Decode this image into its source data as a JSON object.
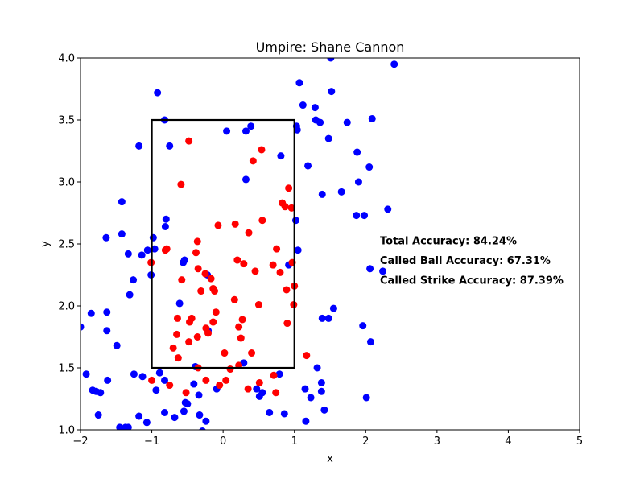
{
  "chart_data": {
    "type": "scatter",
    "title": "Umpire: Shane Cannon",
    "xlabel": "x",
    "ylabel": "y",
    "xlim": [
      -2,
      5
    ],
    "ylim": [
      1.0,
      4.0
    ],
    "xticks": [
      "−2",
      "−1",
      "0",
      "1",
      "2",
      "3",
      "4",
      "5"
    ],
    "yticks": [
      "1.0",
      "1.5",
      "2.0",
      "2.5",
      "3.0",
      "3.5",
      "4.0"
    ],
    "grid": false,
    "strike_zone": {
      "x": [
        -1,
        1
      ],
      "y": [
        1.5,
        3.5
      ],
      "color": "#000000"
    },
    "annotations": [
      {
        "text": "Total Accuracy: 84.24%",
        "x": 2.2,
        "y": 2.53
      },
      {
        "text": "Called Ball Accuracy: 67.31%",
        "x": 2.2,
        "y": 2.37
      },
      {
        "text": "Called Strike Accuracy: 87.39%",
        "x": 2.2,
        "y": 2.21
      }
    ],
    "series": [
      {
        "color": "#0000ff",
        "points": [
          [
            -2.0,
            1.83
          ],
          [
            -1.92,
            1.45
          ],
          [
            -1.85,
            1.94
          ],
          [
            -1.83,
            1.32
          ],
          [
            -1.78,
            1.31
          ],
          [
            -1.75,
            1.12
          ],
          [
            -1.72,
            1.3
          ],
          [
            -1.64,
            2.55
          ],
          [
            -1.63,
            1.95
          ],
          [
            -1.63,
            1.8
          ],
          [
            -1.62,
            1.4
          ],
          [
            -1.49,
            1.68
          ],
          [
            -1.45,
            1.02
          ],
          [
            -1.42,
            2.84
          ],
          [
            -1.42,
            2.58
          ],
          [
            -1.37,
            1.02
          ],
          [
            -1.33,
            1.02
          ],
          [
            -1.33,
            2.42
          ],
          [
            -1.31,
            2.09
          ],
          [
            -1.26,
            2.21
          ],
          [
            -1.25,
            1.45
          ],
          [
            -1.18,
            3.29
          ],
          [
            -1.18,
            1.11
          ],
          [
            -1.14,
            2.41
          ],
          [
            -1.13,
            1.43
          ],
          [
            -1.07,
            1.06
          ],
          [
            -1.06,
            2.45
          ],
          [
            -1.01,
            2.25
          ],
          [
            -0.98,
            2.55
          ],
          [
            -0.96,
            2.46
          ],
          [
            -0.94,
            1.32
          ],
          [
            -0.92,
            3.72
          ],
          [
            -0.89,
            1.46
          ],
          [
            -0.82,
            3.5
          ],
          [
            -0.81,
            2.64
          ],
          [
            -0.8,
            2.7
          ],
          [
            -0.82,
            1.4
          ],
          [
            -0.82,
            1.14
          ],
          [
            -0.75,
            3.29
          ],
          [
            -0.68,
            1.1
          ],
          [
            -0.61,
            2.02
          ],
          [
            -0.56,
            2.35
          ],
          [
            -0.54,
            2.37
          ],
          [
            -0.55,
            1.15
          ],
          [
            -0.53,
            1.22
          ],
          [
            -0.5,
            1.21
          ],
          [
            -0.41,
            1.37
          ],
          [
            -0.39,
            1.51
          ],
          [
            -0.34,
            1.28
          ],
          [
            -0.33,
            1.12
          ],
          [
            -0.29,
            0.99
          ],
          [
            -0.24,
            1.07
          ],
          [
            -0.09,
            1.33
          ],
          [
            0.05,
            3.41
          ],
          [
            0.29,
            1.54
          ],
          [
            0.32,
            3.02
          ],
          [
            0.32,
            3.41
          ],
          [
            0.39,
            3.45
          ],
          [
            0.47,
            1.33
          ],
          [
            0.51,
            1.27
          ],
          [
            0.55,
            1.3
          ],
          [
            0.65,
            1.14
          ],
          [
            0.79,
            1.45
          ],
          [
            0.81,
            3.21
          ],
          [
            0.86,
            1.13
          ],
          [
            0.92,
            2.33
          ],
          [
            1.02,
            2.69
          ],
          [
            1.03,
            3.45
          ],
          [
            1.04,
            3.42
          ],
          [
            1.05,
            2.45
          ],
          [
            1.07,
            3.8
          ],
          [
            1.12,
            3.62
          ],
          [
            1.15,
            1.33
          ],
          [
            1.16,
            1.07
          ],
          [
            1.19,
            3.13
          ],
          [
            1.23,
            1.26
          ],
          [
            1.29,
            3.6
          ],
          [
            1.3,
            3.5
          ],
          [
            1.32,
            1.5
          ],
          [
            1.36,
            3.48
          ],
          [
            1.38,
            1.38
          ],
          [
            1.39,
            2.9
          ],
          [
            1.38,
            1.31
          ],
          [
            1.39,
            1.9
          ],
          [
            1.42,
            1.16
          ],
          [
            1.48,
            1.9
          ],
          [
            1.48,
            3.35
          ],
          [
            1.51,
            4.0
          ],
          [
            1.52,
            3.73
          ],
          [
            1.55,
            1.98
          ],
          [
            1.66,
            2.92
          ],
          [
            1.74,
            3.48
          ],
          [
            1.87,
            2.73
          ],
          [
            1.88,
            3.24
          ],
          [
            1.9,
            3.0
          ],
          [
            1.96,
            1.84
          ],
          [
            1.98,
            2.73
          ],
          [
            2.01,
            1.26
          ],
          [
            2.05,
            3.12
          ],
          [
            2.06,
            2.3
          ],
          [
            2.07,
            1.71
          ],
          [
            2.09,
            3.51
          ],
          [
            2.24,
            2.28
          ],
          [
            2.31,
            2.78
          ],
          [
            2.4,
            3.95
          ],
          [
            -0.21,
            1.8
          ],
          [
            -0.22,
            2.25
          ]
        ]
      },
      {
        "color": "#ff0000",
        "points": [
          [
            -1.01,
            2.35
          ],
          [
            -1.0,
            1.4
          ],
          [
            -0.81,
            2.45
          ],
          [
            -0.79,
            2.46
          ],
          [
            -0.75,
            1.36
          ],
          [
            -0.7,
            1.66
          ],
          [
            -0.65,
            1.77
          ],
          [
            -0.64,
            1.9
          ],
          [
            -0.63,
            1.58
          ],
          [
            -0.59,
            2.98
          ],
          [
            -0.58,
            2.21
          ],
          [
            -0.52,
            1.3
          ],
          [
            -0.48,
            1.71
          ],
          [
            -0.48,
            3.33
          ],
          [
            -0.47,
            1.87
          ],
          [
            -0.44,
            1.9
          ],
          [
            -0.38,
            2.43
          ],
          [
            -0.36,
            2.52
          ],
          [
            -0.36,
            1.75
          ],
          [
            -0.35,
            2.3
          ],
          [
            -0.35,
            1.5
          ],
          [
            -0.31,
            2.12
          ],
          [
            -0.25,
            2.26
          ],
          [
            -0.24,
            1.82
          ],
          [
            -0.24,
            1.4
          ],
          [
            -0.21,
            1.78
          ],
          [
            -0.17,
            2.22
          ],
          [
            -0.14,
            2.14
          ],
          [
            -0.14,
            1.87
          ],
          [
            -0.12,
            2.12
          ],
          [
            -0.1,
            1.95
          ],
          [
            -0.07,
            2.65
          ],
          [
            -0.05,
            1.36
          ],
          [
            0.02,
            1.62
          ],
          [
            0.04,
            1.4
          ],
          [
            0.1,
            1.49
          ],
          [
            0.16,
            2.05
          ],
          [
            0.17,
            2.66
          ],
          [
            0.2,
            2.37
          ],
          [
            0.22,
            1.52
          ],
          [
            0.22,
            1.83
          ],
          [
            0.25,
            1.74
          ],
          [
            0.27,
            1.89
          ],
          [
            0.29,
            2.34
          ],
          [
            0.35,
            1.33
          ],
          [
            0.36,
            2.59
          ],
          [
            0.4,
            1.62
          ],
          [
            0.42,
            3.17
          ],
          [
            0.45,
            2.28
          ],
          [
            0.5,
            2.01
          ],
          [
            0.51,
            1.38
          ],
          [
            0.54,
            3.26
          ],
          [
            0.55,
            2.69
          ],
          [
            0.7,
            2.33
          ],
          [
            0.71,
            1.44
          ],
          [
            0.74,
            1.3
          ],
          [
            0.75,
            2.46
          ],
          [
            0.8,
            2.27
          ],
          [
            0.83,
            2.83
          ],
          [
            0.87,
            2.8
          ],
          [
            0.89,
            2.13
          ],
          [
            0.9,
            1.86
          ],
          [
            0.92,
            2.95
          ],
          [
            0.96,
            2.79
          ],
          [
            0.97,
            2.35
          ],
          [
            0.99,
            2.01
          ],
          [
            1.0,
            2.16
          ],
          [
            1.17,
            1.6
          ]
        ]
      }
    ]
  }
}
